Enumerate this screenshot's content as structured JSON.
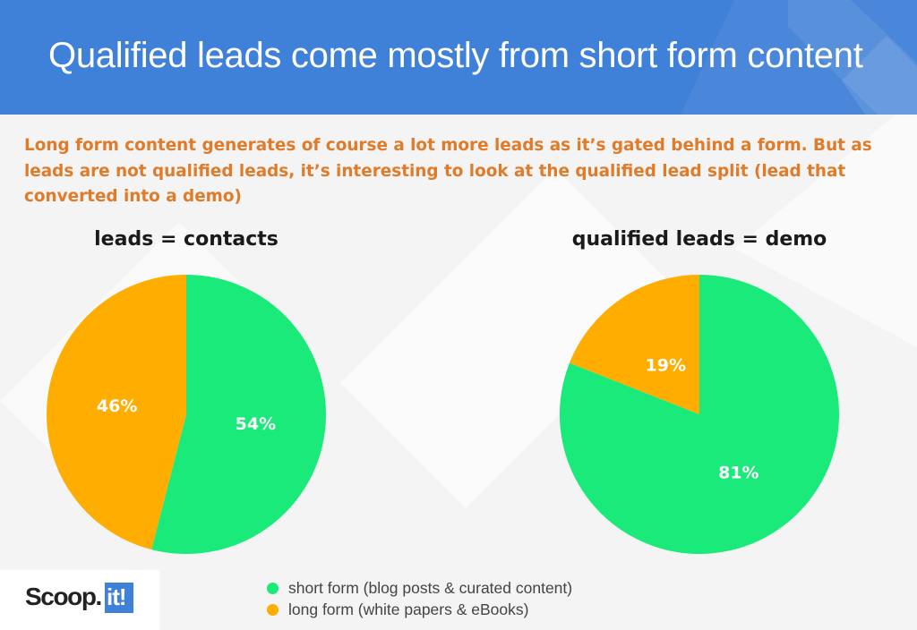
{
  "header": {
    "title": "Qualified leads come mostly from short form content"
  },
  "intro": {
    "text": "Long form content generates of course a lot more leads as it’s gated behind a form. But as leads are not qualified leads, it’s interesting to look at the qualified lead split (lead that converted into a demo)"
  },
  "colors": {
    "header_bg": "#3f80d8",
    "intro_text": "#e07b2a",
    "short_form": "#19ea7a",
    "long_form": "#ffad00"
  },
  "chart_data": [
    {
      "type": "pie",
      "title": "leads = contacts",
      "slices": [
        {
          "name": "short form",
          "value": 54,
          "label": "54%",
          "color": "#19ea7a"
        },
        {
          "name": "long form",
          "value": 46,
          "label": "46%",
          "color": "#ffad00"
        }
      ],
      "start": "12 o'clock",
      "direction": "clockwise"
    },
    {
      "type": "pie",
      "title": "qualified leads = demo",
      "slices": [
        {
          "name": "short form",
          "value": 81,
          "label": "81%",
          "color": "#19ea7a"
        },
        {
          "name": "long form",
          "value": 19,
          "label": "19%",
          "color": "#ffad00"
        }
      ],
      "start": "12 o'clock",
      "direction": "clockwise"
    }
  ],
  "legend": {
    "items": [
      {
        "label": "short form (blog posts & curated content)",
        "color": "#19ea7a"
      },
      {
        "label": "long form (white papers & eBooks)",
        "color": "#ffad00"
      }
    ]
  },
  "logo": {
    "word": "Scoop.",
    "box": "it!"
  }
}
